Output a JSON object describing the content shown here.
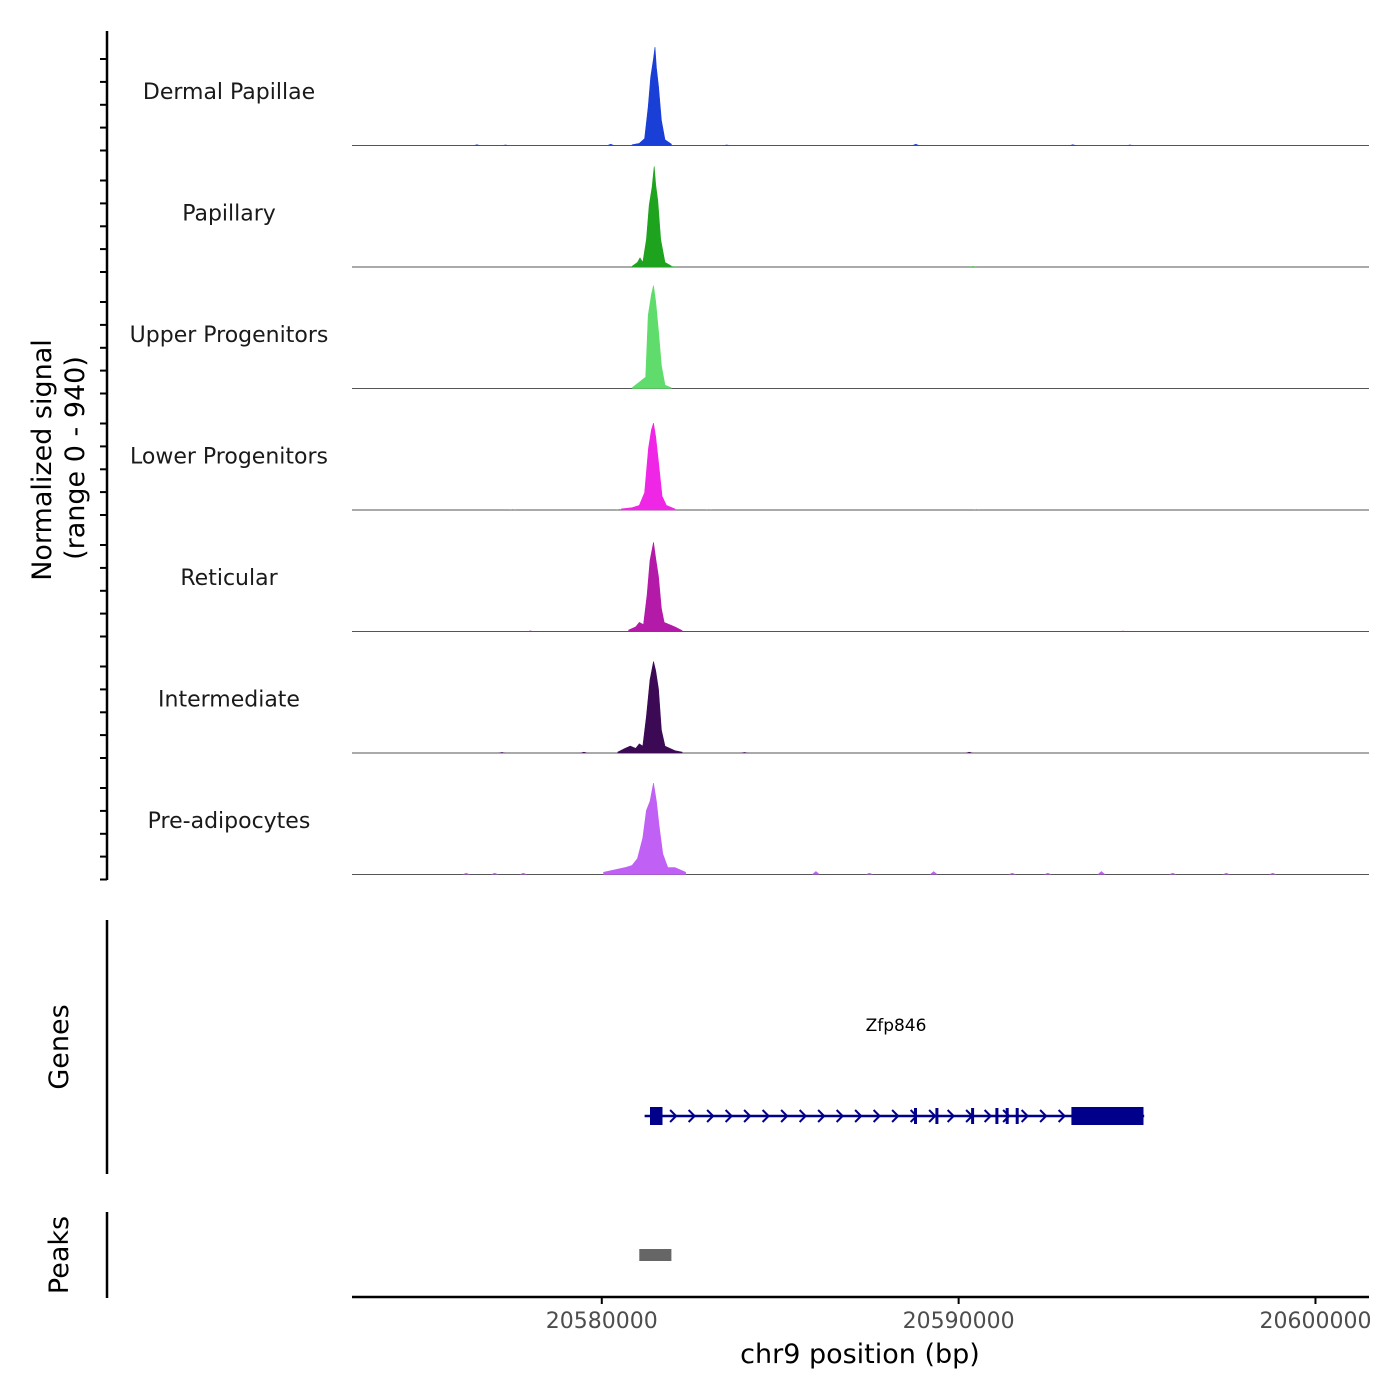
{
  "chart_data": {
    "type": "area",
    "title": "",
    "ylabel_line1": "Normalized signal",
    "ylabel_line2": "(range 0 - 940)",
    "xlabel": "chr9 position (bp)",
    "xlim": [
      20573000,
      20601500
    ],
    "ylim": [
      0,
      940
    ],
    "x_ticks": [
      20580000,
      20590000,
      20600000
    ],
    "x_tick_labels": [
      "20580000",
      "20590000",
      "20600000"
    ],
    "tracks": [
      {
        "name": "Dermal Papillae",
        "color": "#1a3fd6",
        "peak": [
          [
            -600,
            6
          ],
          [
            -400,
            18
          ],
          [
            -250,
            60
          ],
          [
            -150,
            340
          ],
          [
            -80,
            600
          ],
          [
            0,
            760
          ],
          [
            40,
            860
          ],
          [
            80,
            680
          ],
          [
            140,
            520
          ],
          [
            220,
            220
          ],
          [
            320,
            50
          ],
          [
            500,
            12
          ]
        ],
        "noise": [
          [
            20576500,
            10
          ],
          [
            20577300,
            8
          ],
          [
            20580250,
            14
          ],
          [
            20583500,
            8
          ],
          [
            20588800,
            14
          ],
          [
            20593200,
            10
          ],
          [
            20594800,
            8
          ]
        ]
      },
      {
        "name": "Papillary",
        "color": "#1ea31e",
        "peak": [
          [
            -600,
            6
          ],
          [
            -450,
            40
          ],
          [
            -380,
            80
          ],
          [
            -300,
            40
          ],
          [
            -200,
            240
          ],
          [
            -120,
            540
          ],
          [
            -40,
            700
          ],
          [
            20,
            880
          ],
          [
            60,
            720
          ],
          [
            120,
            580
          ],
          [
            200,
            240
          ],
          [
            320,
            40
          ],
          [
            500,
            8
          ]
        ],
        "noise": [
          [
            20582000,
            6
          ],
          [
            20590400,
            6
          ]
        ]
      },
      {
        "name": "Upper Progenitors",
        "color": "#5fdc6b",
        "peak": [
          [
            -600,
            6
          ],
          [
            -380,
            60
          ],
          [
            -300,
            80
          ],
          [
            -220,
            100
          ],
          [
            -150,
            640
          ],
          [
            -60,
            820
          ],
          [
            0,
            900
          ],
          [
            60,
            760
          ],
          [
            140,
            500
          ],
          [
            220,
            200
          ],
          [
            320,
            30
          ],
          [
            500,
            6
          ]
        ],
        "noise": []
      },
      {
        "name": "Lower Progenitors",
        "color": "#f026e6",
        "peak": [
          [
            -900,
            10
          ],
          [
            -600,
            20
          ],
          [
            -400,
            40
          ],
          [
            -250,
            150
          ],
          [
            -140,
            540
          ],
          [
            -60,
            700
          ],
          [
            0,
            760
          ],
          [
            60,
            640
          ],
          [
            140,
            420
          ],
          [
            240,
            120
          ],
          [
            360,
            40
          ],
          [
            600,
            10
          ]
        ],
        "noise": [
          [
            20577500,
            6
          ],
          [
            20580500,
            8
          ],
          [
            20583000,
            6
          ],
          [
            20590500,
            6
          ]
        ]
      },
      {
        "name": "Reticular",
        "color": "#b31aa8",
        "peak": [
          [
            -700,
            12
          ],
          [
            -500,
            40
          ],
          [
            -400,
            80
          ],
          [
            -280,
            60
          ],
          [
            -180,
            320
          ],
          [
            -100,
            620
          ],
          [
            0,
            780
          ],
          [
            60,
            640
          ],
          [
            140,
            480
          ],
          [
            220,
            200
          ],
          [
            300,
            80
          ],
          [
            600,
            40
          ],
          [
            800,
            8
          ]
        ],
        "noise": [
          [
            20578000,
            8
          ],
          [
            20594600,
            6
          ]
        ]
      },
      {
        "name": "Intermediate",
        "color": "#3c0a55",
        "peak": [
          [
            -1000,
            8
          ],
          [
            -800,
            40
          ],
          [
            -650,
            60
          ],
          [
            -500,
            40
          ],
          [
            -400,
            80
          ],
          [
            -300,
            60
          ],
          [
            -200,
            320
          ],
          [
            -100,
            640
          ],
          [
            0,
            800
          ],
          [
            60,
            720
          ],
          [
            140,
            560
          ],
          [
            220,
            200
          ],
          [
            320,
            60
          ],
          [
            600,
            20
          ],
          [
            800,
            8
          ]
        ],
        "noise": [
          [
            20577200,
            8
          ],
          [
            20579500,
            10
          ],
          [
            20584000,
            8
          ],
          [
            20590300,
            10
          ]
        ]
      },
      {
        "name": "Pre-adipocytes",
        "color": "#c060f5",
        "peak": [
          [
            -1400,
            20
          ],
          [
            -1100,
            40
          ],
          [
            -800,
            60
          ],
          [
            -600,
            80
          ],
          [
            -450,
            140
          ],
          [
            -300,
            320
          ],
          [
            -200,
            560
          ],
          [
            -100,
            640
          ],
          [
            0,
            800
          ],
          [
            80,
            640
          ],
          [
            160,
            420
          ],
          [
            260,
            180
          ],
          [
            400,
            60
          ],
          [
            600,
            60
          ],
          [
            900,
            20
          ]
        ],
        "noise": [
          [
            20576200,
            14
          ],
          [
            20577000,
            14
          ],
          [
            20577800,
            14
          ],
          [
            20586000,
            30
          ],
          [
            20587500,
            14
          ],
          [
            20589300,
            28
          ],
          [
            20591500,
            14
          ],
          [
            20592500,
            14
          ],
          [
            20594000,
            30
          ],
          [
            20596000,
            14
          ],
          [
            20597500,
            14
          ],
          [
            20598800,
            14
          ]
        ]
      }
    ],
    "peak_center": 20581450,
    "genes_track": {
      "label": "Genes",
      "gene_name": "Zfp846",
      "strand": "+",
      "start": 20581200,
      "end": 20595200,
      "exons": [
        [
          20581350,
          20581700
        ],
        [
          20588750,
          20588820
        ],
        [
          20589350,
          20589420
        ],
        [
          20590350,
          20590420
        ],
        [
          20591030,
          20591070
        ],
        [
          20591320,
          20591360
        ],
        [
          20591600,
          20591660
        ],
        [
          20593160,
          20595180
        ]
      ]
    },
    "peaks_track": {
      "label": "Peaks",
      "peaks": [
        [
          20581050,
          20581950
        ]
      ]
    }
  }
}
